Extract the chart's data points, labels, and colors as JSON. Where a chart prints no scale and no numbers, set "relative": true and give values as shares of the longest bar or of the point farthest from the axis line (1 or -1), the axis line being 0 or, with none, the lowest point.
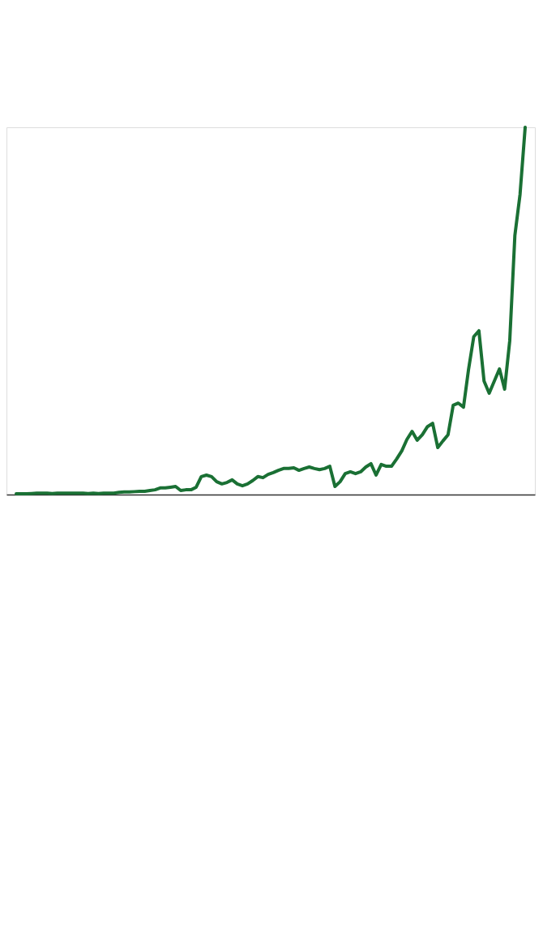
{
  "chart_data": {
    "type": "line",
    "relative": true,
    "categories": [
      null,
      null,
      null,
      null,
      null,
      null,
      null,
      null,
      null,
      null,
      null,
      null,
      null,
      null,
      null,
      null,
      null,
      null,
      null,
      null,
      null,
      null,
      null,
      null,
      null,
      null,
      null,
      null,
      null,
      null,
      null,
      null,
      null,
      null,
      null,
      null,
      null,
      null,
      null,
      null,
      null,
      null,
      null,
      null,
      null,
      null,
      null,
      null,
      null,
      null,
      null,
      null,
      null,
      null,
      null,
      null,
      null,
      null,
      null,
      null,
      null,
      null,
      null,
      null,
      null,
      null,
      null,
      null,
      null,
      null,
      null,
      null,
      null,
      null,
      null,
      null,
      null,
      null,
      null,
      null,
      null,
      null,
      null,
      null,
      null,
      null,
      null,
      null,
      null,
      null,
      null,
      null,
      null,
      null,
      null,
      null,
      null,
      null,
      null,
      null
    ],
    "series": [
      {
        "color": "#1a7034",
        "values": [
          0.002,
          0.002,
          0.002,
          0.003,
          0.004,
          0.004,
          0.004,
          0.003,
          0.004,
          0.004,
          0.004,
          0.004,
          0.004,
          0.004,
          0.003,
          0.004,
          0.003,
          0.004,
          0.004,
          0.004,
          0.006,
          0.007,
          0.007,
          0.008,
          0.009,
          0.009,
          0.011,
          0.013,
          0.018,
          0.018,
          0.02,
          0.022,
          0.011,
          0.013,
          0.013,
          0.02,
          0.049,
          0.053,
          0.049,
          0.035,
          0.029,
          0.033,
          0.04,
          0.029,
          0.024,
          0.029,
          0.038,
          0.049,
          0.046,
          0.055,
          0.06,
          0.066,
          0.071,
          0.071,
          0.073,
          0.066,
          0.071,
          0.075,
          0.071,
          0.068,
          0.071,
          0.077,
          0.022,
          0.035,
          0.057,
          0.062,
          0.057,
          0.062,
          0.075,
          0.084,
          0.053,
          0.082,
          0.077,
          0.077,
          0.097,
          0.119,
          0.15,
          0.172,
          0.148,
          0.163,
          0.185,
          0.194,
          0.128,
          0.146,
          0.163,
          0.243,
          0.249,
          0.238,
          0.342,
          0.43,
          0.446,
          0.309,
          0.276,
          0.309,
          0.342,
          0.287,
          0.419,
          0.706,
          0.817,
          1
        ]
      }
    ]
  }
}
